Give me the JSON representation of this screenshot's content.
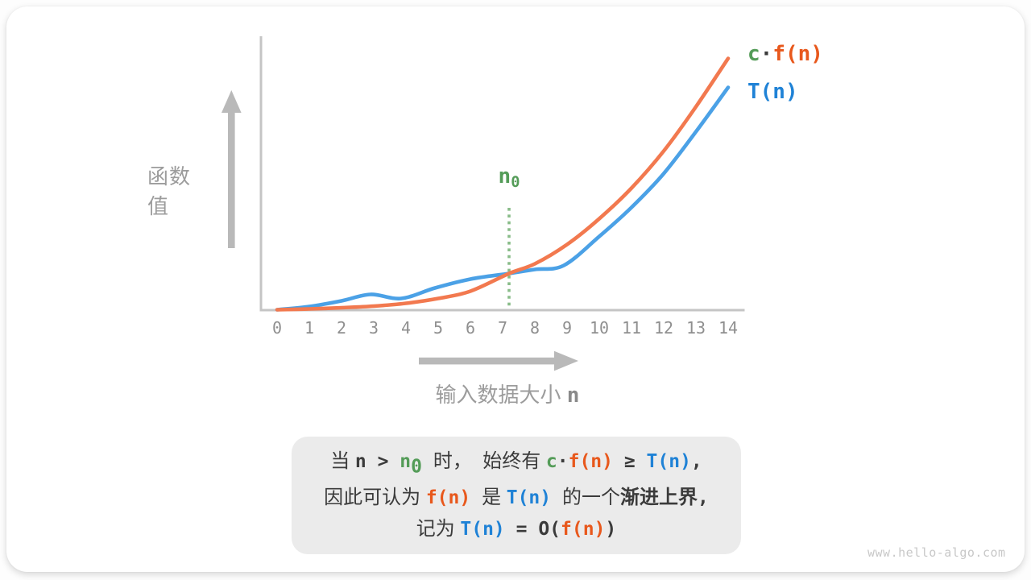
{
  "page": {
    "watermark": "www.hello-algo.com"
  },
  "colors": {
    "card": "#ffffff",
    "dark": "#3b3b3b",
    "orange": "#f2794f",
    "orange_text": "#e8581c",
    "blue": "#4ba1e6",
    "blue_text": "#1f82d6",
    "green": "#549c58",
    "green_dot": "#88bc88",
    "axis": "#c5c5c5",
    "arrow": "#b9b9b9",
    "tick": "#8f8f8f",
    "label": "#9c9c9c",
    "nlabel": "#8a8a8a",
    "box_bg": "#ebebeb",
    "watermark": "#c8c8c8"
  },
  "chart_data": {
    "type": "line",
    "title": "",
    "xlabel": "输入数据大小 n",
    "ylabel": "函数值",
    "x_ticks": [
      "0",
      "1",
      "2",
      "3",
      "4",
      "5",
      "6",
      "7",
      "8",
      "9",
      "10",
      "11",
      "12",
      "13",
      "14"
    ],
    "xlim": [
      0,
      14.6
    ],
    "ylim": [
      0,
      340
    ],
    "grid": false,
    "legend_position": "top-right",
    "annotation": {
      "label": "n0",
      "x": 7.2
    },
    "series": [
      {
        "name": "T(n)",
        "color_key": "blue",
        "points": [
          [
            0,
            1
          ],
          [
            1,
            5
          ],
          [
            2,
            12
          ],
          [
            2.9,
            20
          ],
          [
            3.85,
            15
          ],
          [
            4.9,
            28
          ],
          [
            6,
            39
          ],
          [
            7.2,
            46
          ],
          [
            8,
            51
          ],
          [
            8.9,
            56
          ],
          [
            10,
            92
          ],
          [
            11,
            128
          ],
          [
            12,
            170
          ],
          [
            13,
            222
          ],
          [
            14,
            277
          ]
        ]
      },
      {
        "name": "c·f(n)",
        "color_key": "orange",
        "points": [
          [
            0,
            1
          ],
          [
            1,
            2
          ],
          [
            2,
            3.5
          ],
          [
            3,
            5.5
          ],
          [
            4,
            9
          ],
          [
            5,
            15
          ],
          [
            6,
            24
          ],
          [
            7.2,
            46
          ],
          [
            8,
            58
          ],
          [
            9,
            82
          ],
          [
            10,
            114
          ],
          [
            11,
            152
          ],
          [
            12,
            198
          ],
          [
            13,
            253
          ],
          [
            14,
            313
          ]
        ]
      }
    ]
  },
  "labels": {
    "ylabel": "函数值",
    "xlabel_segments": [
      {
        "t": "输入数据大小 ",
        "c": "label"
      },
      {
        "t": "n",
        "c": "nlabel"
      }
    ],
    "n0_segments": [
      {
        "t": "n",
        "c": "green"
      },
      {
        "t": "0",
        "c": "green",
        "sub": true
      }
    ]
  },
  "legend": {
    "cfn_segments": [
      {
        "t": "c",
        "c": "green"
      },
      {
        "t": "·",
        "c": "math"
      },
      {
        "t": "f(n)",
        "c": "orange"
      }
    ],
    "tn_segments": [
      {
        "t": "T(n)",
        "c": "blue"
      }
    ]
  },
  "note_box": {
    "lines": [
      {
        "segments": [
          {
            "t": "当 ",
            "c": "cn"
          },
          {
            "t": "n",
            "c": "math"
          },
          {
            "t": " > ",
            "c": "math"
          },
          {
            "t": "n",
            "c": "green"
          },
          {
            "t": "0",
            "c": "green",
            "sub": true
          },
          {
            "t": " ",
            "c": "math"
          },
          {
            "t": "时，  始终有 ",
            "c": "cn"
          },
          {
            "t": "c",
            "c": "green"
          },
          {
            "t": "·",
            "c": "math"
          },
          {
            "t": "f(n)",
            "c": "orange"
          },
          {
            "t": " ≥ ",
            "c": "math"
          },
          {
            "t": "T(n)",
            "c": "blue"
          },
          {
            "t": ",",
            "c": "math"
          }
        ]
      },
      {
        "segments": [
          {
            "t": "因此可认为 ",
            "c": "cn"
          },
          {
            "t": "f(n)",
            "c": "orange"
          },
          {
            "t": " ",
            "c": "math"
          },
          {
            "t": "是 ",
            "c": "cn"
          },
          {
            "t": "T(n)",
            "c": "blue"
          },
          {
            "t": " ",
            "c": "math"
          },
          {
            "t": "的一个",
            "c": "cn"
          },
          {
            "t": "渐进上界",
            "c": "cnb"
          },
          {
            "t": ",",
            "c": "math"
          }
        ]
      },
      {
        "segments": [
          {
            "t": "记为 ",
            "c": "cn"
          },
          {
            "t": "T(n)",
            "c": "blue"
          },
          {
            "t": " = ",
            "c": "math"
          },
          {
            "t": "O(",
            "c": "math"
          },
          {
            "t": "f(n)",
            "c": "orange"
          },
          {
            "t": ")",
            "c": "math"
          }
        ]
      }
    ]
  }
}
